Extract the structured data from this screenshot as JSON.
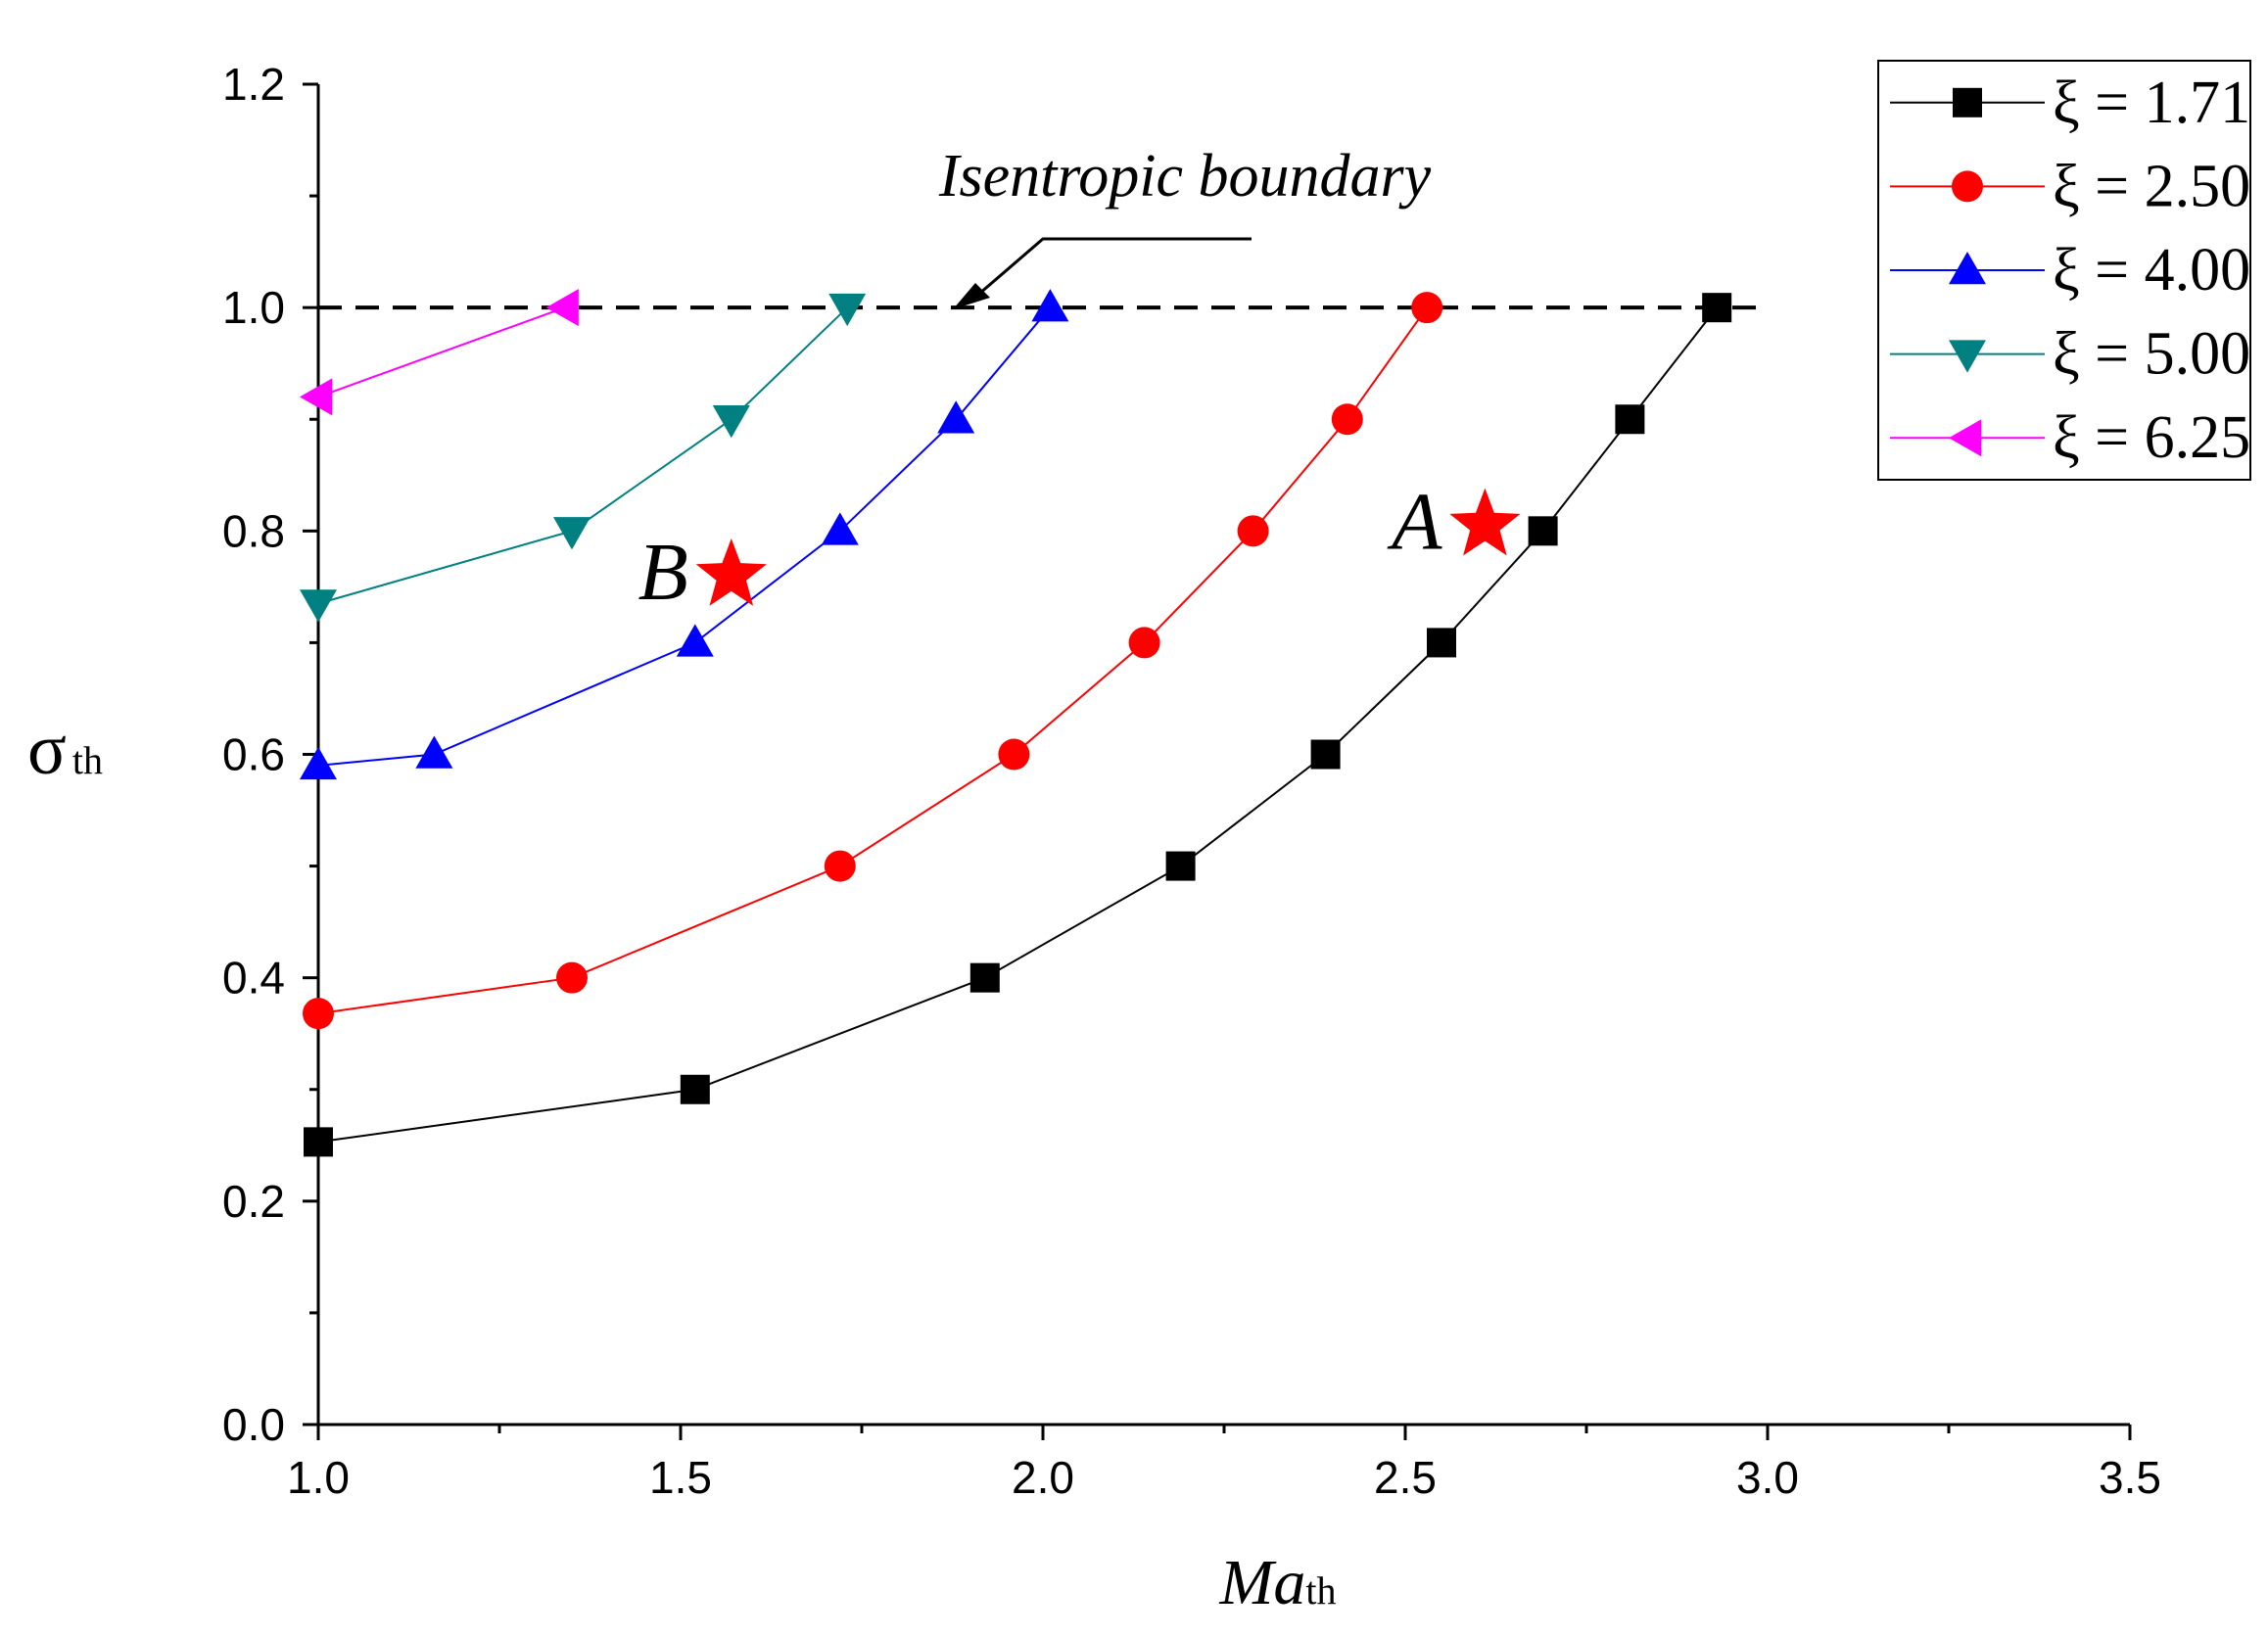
{
  "chart_data": {
    "type": "line",
    "title": "",
    "xlabel": {
      "main": "Ma",
      "sub": "th"
    },
    "ylabel": {
      "main": "σ",
      "sub": "th"
    },
    "xlim": [
      1.0,
      3.5
    ],
    "ylim": [
      0.0,
      1.2
    ],
    "xticks": [
      "1.0",
      "1.5",
      "2.0",
      "2.5",
      "3.0",
      "3.5"
    ],
    "yticks": [
      "0.0",
      "0.2",
      "0.4",
      "0.6",
      "0.8",
      "1.0",
      "1.2"
    ],
    "grid": false,
    "legend_position": "top-right",
    "series": [
      {
        "name": "ξ = 1.71",
        "color": "#000000",
        "marker": "square",
        "x": [
          1.0,
          1.52,
          1.92,
          2.19,
          2.39,
          2.55,
          2.69,
          2.81,
          2.93
        ],
        "y": [
          0.253,
          0.3,
          0.4,
          0.5,
          0.6,
          0.7,
          0.8,
          0.9,
          1.0
        ]
      },
      {
        "name": "ξ = 2.50",
        "color": "#ff0000",
        "marker": "circle",
        "x": [
          1.0,
          1.35,
          1.72,
          1.96,
          2.14,
          2.29,
          2.42,
          2.53
        ],
        "y": [
          0.368,
          0.4,
          0.5,
          0.6,
          0.7,
          0.8,
          0.9,
          1.0
        ]
      },
      {
        "name": "ξ = 4.00",
        "color": "#0000ff",
        "marker": "triangle-up",
        "x": [
          1.0,
          1.16,
          1.52,
          1.72,
          1.88,
          2.01
        ],
        "y": [
          0.59,
          0.6,
          0.7,
          0.8,
          0.9,
          1.0
        ]
      },
      {
        "name": "ξ = 5.00",
        "color": "#008080",
        "marker": "triangle-down",
        "x": [
          1.0,
          1.35,
          1.57,
          1.73
        ],
        "y": [
          0.735,
          0.8,
          0.9,
          1.0
        ]
      },
      {
        "name": "ξ = 6.25",
        "color": "#ff00ff",
        "marker": "triangle-left",
        "x": [
          1.0,
          1.34
        ],
        "y": [
          0.92,
          1.0
        ]
      }
    ],
    "reference_line": {
      "y": 1.0,
      "x_range": [
        1.0,
        3.0
      ],
      "style": "dashed",
      "label": "Isentropic boundary"
    },
    "annotations": [
      {
        "label": "A",
        "x": 2.61,
        "y": 0.805,
        "marker": "star",
        "color": "#ff0000"
      },
      {
        "label": "B",
        "x": 1.57,
        "y": 0.76,
        "marker": "star",
        "color": "#ff0000"
      }
    ]
  }
}
